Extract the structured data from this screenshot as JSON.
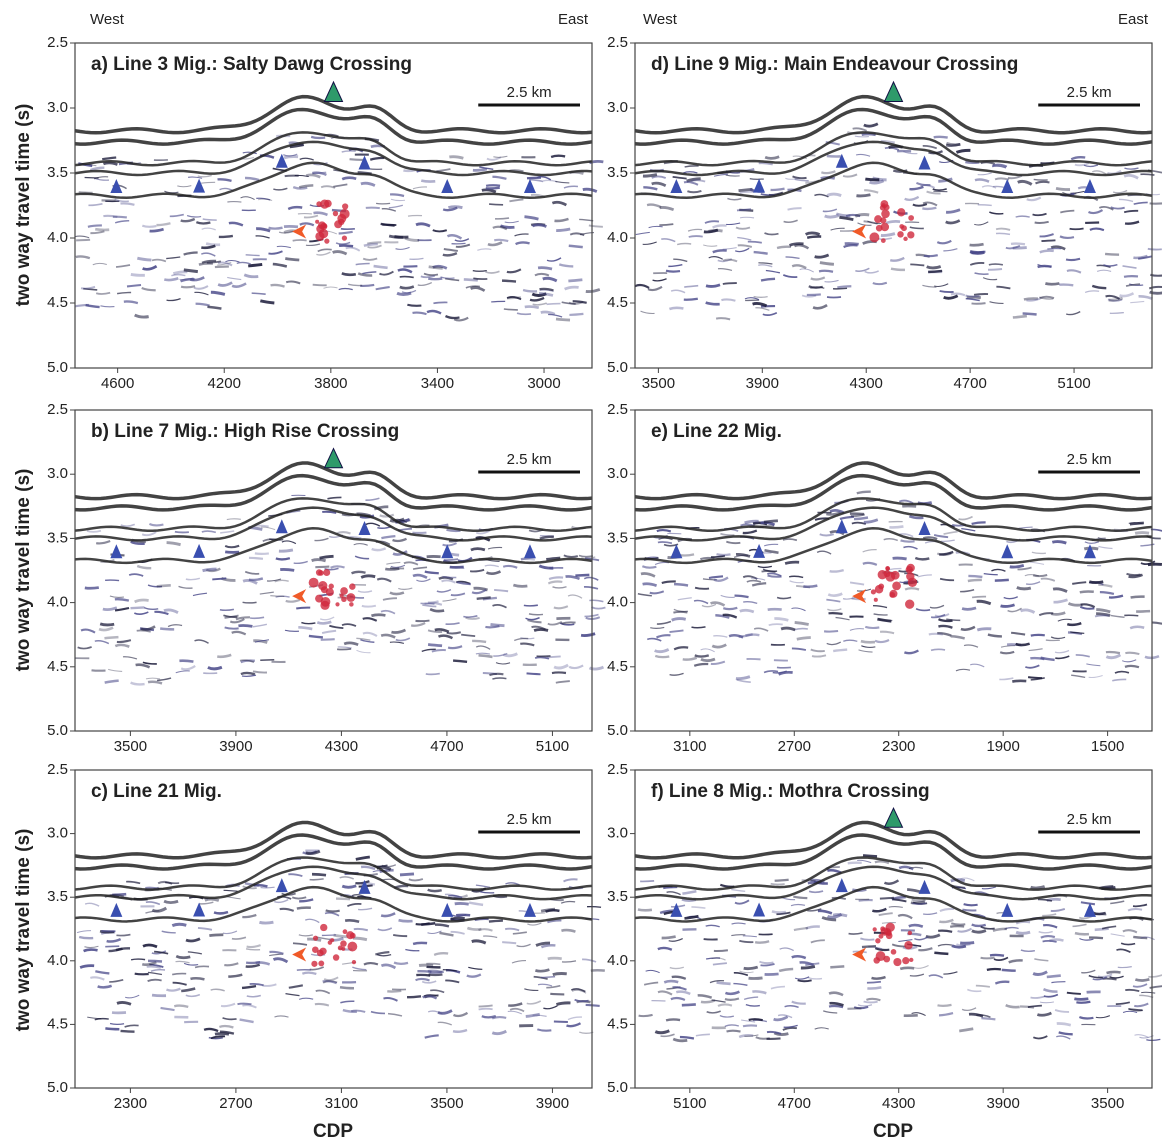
{
  "figure": {
    "west": "West",
    "east": "East",
    "y_label": "two way travel time (s)",
    "x_label": "CDP"
  },
  "chart_data": [
    {
      "type": "seismic-section",
      "title": "a) Line 3 Mig.:  Salty Dawg Crossing",
      "scale_label": "2.5 km",
      "xlim": [
        4760,
        2820
      ],
      "xticks": [
        4600,
        4200,
        3800,
        3400,
        3000
      ],
      "ylim": [
        2.5,
        5
      ],
      "yticks": [
        2.5,
        {
          "value": 3,
          "label": "3.0"
        },
        3.5,
        {
          "value": 4,
          "label": "4.0"
        },
        4.5,
        {
          "value": 5,
          "label": "5.0"
        }
      ],
      "y_inverted": true
    },
    {
      "type": "seismic-section",
      "title": "b) Line 7 Mig.:  High Rise Crossing",
      "scale_label": "2.5 km",
      "xlim": [
        3290,
        5250
      ],
      "xticks": [
        3500,
        3900,
        4300,
        4700,
        5100
      ],
      "ylim": [
        2.5,
        5
      ],
      "yticks": [
        2.5,
        {
          "value": 3,
          "label": "3.0"
        },
        3.5,
        {
          "value": 4,
          "label": "4.0"
        },
        4.5,
        {
          "value": 5,
          "label": "5.0"
        }
      ],
      "y_inverted": true
    },
    {
      "type": "seismic-section",
      "title": "c) Line 21 Mig.",
      "scale_label": "2.5 km",
      "xlim": [
        2090,
        4050
      ],
      "xticks": [
        2300,
        2700,
        3100,
        3500,
        3900
      ],
      "ylim": [
        2.5,
        5
      ],
      "yticks": [
        2.5,
        {
          "value": 3,
          "label": "3.0"
        },
        3.5,
        {
          "value": 4,
          "label": "4.0"
        },
        4.5,
        {
          "value": 5,
          "label": "5.0"
        }
      ],
      "y_inverted": true
    },
    {
      "type": "seismic-section",
      "title": "d) Line 9 Mig.:  Main Endeavour Crossing",
      "scale_label": "2.5 km",
      "xlim": [
        3410,
        5400
      ],
      "xticks": [
        3500,
        3900,
        4300,
        4700,
        5100
      ],
      "ylim": [
        2.5,
        5
      ],
      "yticks": [
        2.5,
        {
          "value": 3,
          "label": "3.0"
        },
        3.5,
        {
          "value": 4,
          "label": "4.0"
        },
        4.5,
        {
          "value": 5,
          "label": "5.0"
        }
      ],
      "y_inverted": true
    },
    {
      "type": "seismic-section",
      "title": "e) Line 22 Mig.",
      "scale_label": "2.5 km",
      "xlim": [
        3310,
        1330
      ],
      "xticks": [
        3100,
        2700,
        2300,
        1900,
        1500
      ],
      "ylim": [
        2.5,
        5
      ],
      "yticks": [
        2.5,
        {
          "value": 3,
          "label": "3.0"
        },
        3.5,
        {
          "value": 4,
          "label": "4.0"
        },
        4.5,
        {
          "value": 5,
          "label": "5.0"
        }
      ],
      "y_inverted": true
    },
    {
      "type": "seismic-section",
      "title": "f) Line 8 Mig.:  Mothra Crossing",
      "scale_label": "2.5 km",
      "xlim": [
        5310,
        3330
      ],
      "xticks": [
        5100,
        4700,
        4300,
        3900,
        3500
      ],
      "ylim": [
        2.5,
        5
      ],
      "yticks": [
        2.5,
        {
          "value": 3,
          "label": "3.0"
        },
        3.5,
        {
          "value": 4,
          "label": "4.0"
        },
        4.5,
        {
          "value": 5,
          "label": "5.0"
        }
      ],
      "y_inverted": true
    }
  ]
}
